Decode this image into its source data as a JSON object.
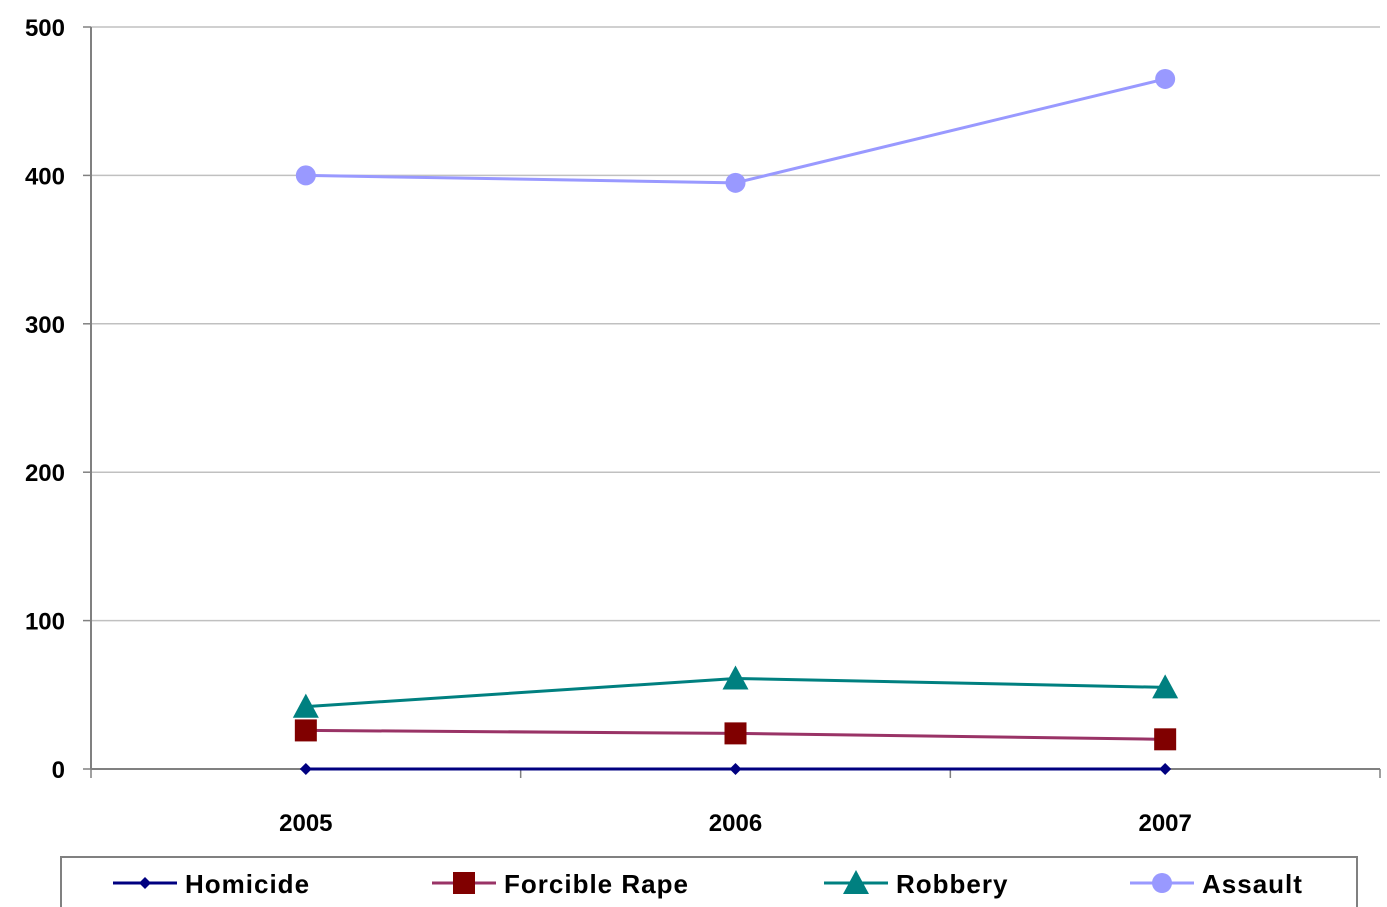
{
  "chart_data": {
    "type": "line",
    "categories": [
      "2005",
      "2006",
      "2007"
    ],
    "ylim": [
      0,
      500
    ],
    "yticks": [
      0,
      100,
      200,
      300,
      400,
      500
    ],
    "grid": true,
    "legend_position": "bottom",
    "series": [
      {
        "name": "Homicide",
        "values": [
          0,
          0,
          0
        ],
        "color": "#000080",
        "marker": "diamond"
      },
      {
        "name": "Forcible Rape",
        "values": [
          26,
          24,
          20
        ],
        "color": "#800000",
        "line_color": "#993366",
        "marker": "square"
      },
      {
        "name": "Robbery",
        "values": [
          42,
          61,
          55
        ],
        "color": "#008080",
        "marker": "triangle"
      },
      {
        "name": "Assault",
        "values": [
          400,
          395,
          465
        ],
        "color": "#9999FF",
        "marker": "circle"
      }
    ]
  }
}
